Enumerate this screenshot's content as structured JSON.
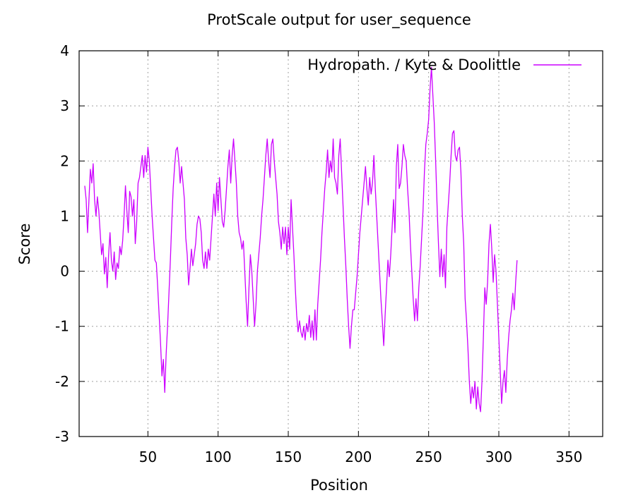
{
  "chart_data": {
    "type": "line",
    "title": "ProtScale output for user_sequence",
    "xlabel": "Position",
    "ylabel": "Score",
    "xlim": [
      1,
      374
    ],
    "ylim": [
      -3,
      4
    ],
    "x_ticks": [
      50,
      100,
      150,
      200,
      250,
      300,
      350
    ],
    "y_ticks": [
      -3,
      -2,
      -1,
      0,
      1,
      2,
      3,
      4
    ],
    "grid": true,
    "legend_position": "top-right",
    "series": [
      {
        "name": "Hydropath. / Kyte & Doolittle",
        "color": "#cc00ff",
        "points": [
          [
            5,
            1.55
          ],
          [
            6,
            1.3
          ],
          [
            7,
            0.7
          ],
          [
            8,
            1.3
          ],
          [
            9,
            1.85
          ],
          [
            10,
            1.6
          ],
          [
            11,
            1.95
          ],
          [
            12,
            1.3
          ],
          [
            13,
            1.0
          ],
          [
            14,
            1.35
          ],
          [
            15,
            1.1
          ],
          [
            16,
            0.7
          ],
          [
            17,
            0.3
          ],
          [
            18,
            0.5
          ],
          [
            19,
            -0.05
          ],
          [
            20,
            0.25
          ],
          [
            21,
            -0.3
          ],
          [
            22,
            0.3
          ],
          [
            23,
            0.7
          ],
          [
            24,
            0.2
          ],
          [
            25,
            0.0
          ],
          [
            26,
            0.35
          ],
          [
            27,
            -0.15
          ],
          [
            28,
            0.15
          ],
          [
            29,
            0.05
          ],
          [
            30,
            0.45
          ],
          [
            31,
            0.3
          ],
          [
            32,
            0.55
          ],
          [
            33,
            1.0
          ],
          [
            34,
            1.55
          ],
          [
            35,
            1.1
          ],
          [
            36,
            0.7
          ],
          [
            37,
            1.45
          ],
          [
            38,
            1.35
          ],
          [
            39,
            1.0
          ],
          [
            40,
            1.3
          ],
          [
            41,
            0.5
          ],
          [
            42,
            0.9
          ],
          [
            43,
            1.6
          ],
          [
            44,
            1.7
          ],
          [
            45,
            1.9
          ],
          [
            46,
            2.1
          ],
          [
            47,
            1.7
          ],
          [
            48,
            2.1
          ],
          [
            49,
            1.8
          ],
          [
            50,
            2.25
          ],
          [
            51,
            2.0
          ],
          [
            52,
            1.5
          ],
          [
            53,
            1.0
          ],
          [
            54,
            0.6
          ],
          [
            55,
            0.2
          ],
          [
            56,
            0.15
          ],
          [
            57,
            -0.3
          ],
          [
            58,
            -0.8
          ],
          [
            59,
            -1.3
          ],
          [
            60,
            -1.9
          ],
          [
            61,
            -1.6
          ],
          [
            62,
            -2.2
          ],
          [
            63,
            -1.5
          ],
          [
            64,
            -1.0
          ],
          [
            65,
            -0.4
          ],
          [
            66,
            0.2
          ],
          [
            67,
            0.9
          ],
          [
            68,
            1.5
          ],
          [
            69,
            1.9
          ],
          [
            70,
            2.2
          ],
          [
            71,
            2.25
          ],
          [
            72,
            2.0
          ],
          [
            73,
            1.6
          ],
          [
            74,
            1.9
          ],
          [
            75,
            1.6
          ],
          [
            76,
            1.3
          ],
          [
            77,
            0.6
          ],
          [
            78,
            0.3
          ],
          [
            79,
            -0.25
          ],
          [
            80,
            0.05
          ],
          [
            81,
            0.4
          ],
          [
            82,
            0.1
          ],
          [
            83,
            0.3
          ],
          [
            84,
            0.5
          ],
          [
            85,
            0.85
          ],
          [
            86,
            1.0
          ],
          [
            87,
            0.95
          ],
          [
            88,
            0.7
          ],
          [
            89,
            0.2
          ],
          [
            90,
            0.05
          ],
          [
            91,
            0.35
          ],
          [
            92,
            0.05
          ],
          [
            93,
            0.4
          ],
          [
            94,
            0.2
          ],
          [
            95,
            0.6
          ],
          [
            96,
            1.0
          ],
          [
            97,
            1.4
          ],
          [
            98,
            1.0
          ],
          [
            99,
            1.6
          ],
          [
            100,
            1.1
          ],
          [
            101,
            1.7
          ],
          [
            102,
            1.3
          ],
          [
            103,
            0.9
          ],
          [
            104,
            0.8
          ],
          [
            105,
            1.1
          ],
          [
            106,
            1.5
          ],
          [
            107,
            1.9
          ],
          [
            108,
            2.2
          ],
          [
            109,
            1.6
          ],
          [
            110,
            2.1
          ],
          [
            111,
            2.4
          ],
          [
            112,
            2.0
          ],
          [
            113,
            1.6
          ],
          [
            114,
            1.0
          ],
          [
            115,
            0.7
          ],
          [
            116,
            0.6
          ],
          [
            117,
            0.4
          ],
          [
            118,
            0.55
          ],
          [
            119,
            0.0
          ],
          [
            120,
            -0.55
          ],
          [
            121,
            -1.0
          ],
          [
            122,
            -0.3
          ],
          [
            123,
            0.3
          ],
          [
            124,
            0.0
          ],
          [
            125,
            -0.5
          ],
          [
            126,
            -1.0
          ],
          [
            127,
            -0.6
          ],
          [
            128,
            0.0
          ],
          [
            129,
            0.3
          ],
          [
            130,
            0.6
          ],
          [
            131,
            1.0
          ],
          [
            132,
            1.3
          ],
          [
            133,
            1.7
          ],
          [
            134,
            2.1
          ],
          [
            135,
            2.4
          ],
          [
            136,
            2.0
          ],
          [
            137,
            1.7
          ],
          [
            138,
            2.3
          ],
          [
            139,
            2.4
          ],
          [
            140,
            2.0
          ],
          [
            141,
            1.7
          ],
          [
            142,
            1.4
          ],
          [
            143,
            0.9
          ],
          [
            144,
            0.7
          ],
          [
            145,
            0.4
          ],
          [
            146,
            0.8
          ],
          [
            147,
            0.5
          ],
          [
            148,
            0.8
          ],
          [
            149,
            0.3
          ],
          [
            150,
            0.8
          ],
          [
            151,
            0.4
          ],
          [
            152,
            1.3
          ],
          [
            153,
            0.8
          ],
          [
            154,
            0.3
          ],
          [
            155,
            -0.3
          ],
          [
            156,
            -0.8
          ],
          [
            157,
            -1.1
          ],
          [
            158,
            -0.9
          ],
          [
            159,
            -1.1
          ],
          [
            160,
            -1.2
          ],
          [
            161,
            -1.0
          ],
          [
            162,
            -1.25
          ],
          [
            163,
            -0.95
          ],
          [
            164,
            -1.1
          ],
          [
            165,
            -0.8
          ],
          [
            166,
            -1.2
          ],
          [
            167,
            -0.9
          ],
          [
            168,
            -1.25
          ],
          [
            169,
            -0.7
          ],
          [
            170,
            -1.25
          ],
          [
            171,
            -0.6
          ],
          [
            172,
            -0.2
          ],
          [
            173,
            0.2
          ],
          [
            174,
            0.7
          ],
          [
            175,
            1.1
          ],
          [
            176,
            1.5
          ],
          [
            177,
            1.8
          ],
          [
            178,
            2.2
          ],
          [
            179,
            1.7
          ],
          [
            180,
            2.0
          ],
          [
            181,
            1.8
          ],
          [
            182,
            2.4
          ],
          [
            183,
            1.7
          ],
          [
            184,
            1.6
          ],
          [
            185,
            1.4
          ],
          [
            186,
            2.1
          ],
          [
            187,
            2.4
          ],
          [
            188,
            1.8
          ],
          [
            189,
            1.2
          ],
          [
            190,
            0.6
          ],
          [
            191,
            0.1
          ],
          [
            192,
            -0.5
          ],
          [
            193,
            -1.0
          ],
          [
            194,
            -1.4
          ],
          [
            195,
            -1.0
          ],
          [
            196,
            -0.7
          ],
          [
            197,
            -0.7
          ],
          [
            198,
            -0.4
          ],
          [
            199,
            -0.1
          ],
          [
            200,
            0.3
          ],
          [
            201,
            0.7
          ],
          [
            202,
            1.0
          ],
          [
            203,
            1.3
          ],
          [
            204,
            1.6
          ],
          [
            205,
            1.9
          ],
          [
            206,
            1.5
          ],
          [
            207,
            1.2
          ],
          [
            208,
            1.7
          ],
          [
            209,
            1.4
          ],
          [
            210,
            1.6
          ],
          [
            211,
            2.1
          ],
          [
            212,
            1.5
          ],
          [
            213,
            1.0
          ],
          [
            214,
            0.5
          ],
          [
            215,
            0.0
          ],
          [
            216,
            -0.5
          ],
          [
            217,
            -0.9
          ],
          [
            218,
            -1.35
          ],
          [
            219,
            -0.8
          ],
          [
            220,
            -0.3
          ],
          [
            221,
            0.2
          ],
          [
            222,
            -0.1
          ],
          [
            223,
            0.3
          ],
          [
            224,
            0.8
          ],
          [
            225,
            1.3
          ],
          [
            226,
            0.7
          ],
          [
            227,
            1.9
          ],
          [
            228,
            2.3
          ],
          [
            229,
            1.5
          ],
          [
            230,
            1.6
          ],
          [
            231,
            1.9
          ],
          [
            232,
            2.3
          ],
          [
            233,
            2.1
          ],
          [
            234,
            2.0
          ],
          [
            235,
            1.5
          ],
          [
            236,
            1.1
          ],
          [
            237,
            0.5
          ],
          [
            238,
            0.0
          ],
          [
            239,
            -0.5
          ],
          [
            240,
            -0.9
          ],
          [
            241,
            -0.5
          ],
          [
            242,
            -0.9
          ],
          [
            243,
            -0.3
          ],
          [
            244,
            0.1
          ],
          [
            245,
            0.6
          ],
          [
            246,
            1.1
          ],
          [
            247,
            1.8
          ],
          [
            248,
            2.3
          ],
          [
            249,
            2.5
          ],
          [
            250,
            2.75
          ],
          [
            251,
            3.3
          ],
          [
            252,
            3.7
          ],
          [
            253,
            3.2
          ],
          [
            254,
            2.7
          ],
          [
            255,
            2.0
          ],
          [
            256,
            1.2
          ],
          [
            257,
            0.5
          ],
          [
            258,
            -0.1
          ],
          [
            259,
            0.4
          ],
          [
            260,
            -0.1
          ],
          [
            261,
            0.3
          ],
          [
            262,
            -0.3
          ],
          [
            263,
            0.8
          ],
          [
            264,
            1.2
          ],
          [
            265,
            1.6
          ],
          [
            266,
            2.1
          ],
          [
            267,
            2.5
          ],
          [
            268,
            2.55
          ],
          [
            269,
            2.1
          ],
          [
            270,
            2.0
          ],
          [
            271,
            2.2
          ],
          [
            272,
            2.25
          ],
          [
            273,
            1.8
          ],
          [
            274,
            1.0
          ],
          [
            275,
            0.5
          ],
          [
            276,
            -0.5
          ],
          [
            277,
            -0.9
          ],
          [
            278,
            -1.4
          ],
          [
            279,
            -2.0
          ],
          [
            280,
            -2.4
          ],
          [
            281,
            -2.1
          ],
          [
            282,
            -2.3
          ],
          [
            283,
            -2.0
          ],
          [
            284,
            -2.5
          ],
          [
            285,
            -2.1
          ],
          [
            286,
            -2.4
          ],
          [
            287,
            -2.55
          ],
          [
            288,
            -2.0
          ],
          [
            289,
            -1.2
          ],
          [
            290,
            -0.3
          ],
          [
            291,
            -0.6
          ],
          [
            292,
            -0.2
          ],
          [
            293,
            0.5
          ],
          [
            294,
            0.85
          ],
          [
            295,
            0.4
          ],
          [
            296,
            -0.2
          ],
          [
            297,
            0.3
          ],
          [
            298,
            0.0
          ],
          [
            299,
            -0.6
          ],
          [
            300,
            -1.2
          ],
          [
            301,
            -1.8
          ],
          [
            302,
            -2.4
          ],
          [
            303,
            -2.0
          ],
          [
            304,
            -1.8
          ],
          [
            305,
            -2.2
          ],
          [
            306,
            -1.6
          ],
          [
            307,
            -1.2
          ],
          [
            308,
            -0.9
          ],
          [
            309,
            -0.7
          ],
          [
            310,
            -0.4
          ],
          [
            311,
            -0.7
          ],
          [
            312,
            -0.2
          ],
          [
            313,
            0.2
          ]
        ]
      }
    ]
  }
}
